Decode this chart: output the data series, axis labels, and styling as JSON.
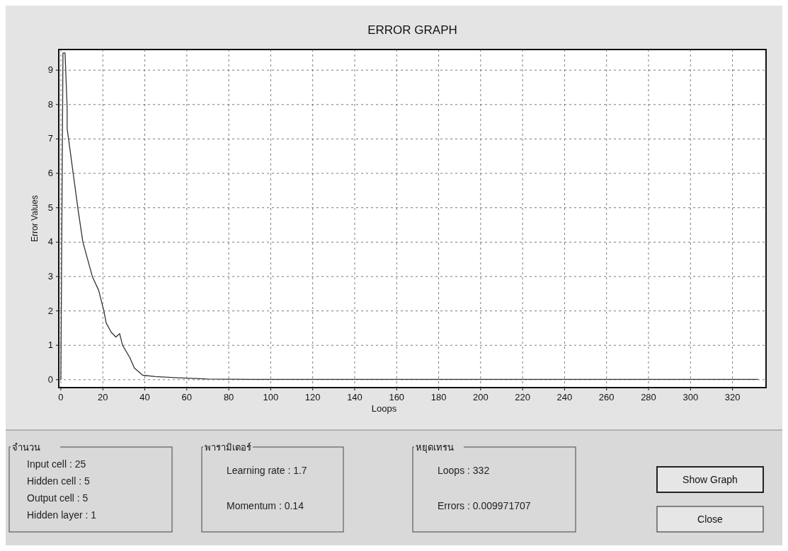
{
  "chart_data": {
    "type": "line",
    "title": "ERROR GRAPH",
    "xlabel": "Loops",
    "ylabel": "Error Values",
    "xlim": [
      -1,
      336
    ],
    "ylim": [
      -0.23,
      9.6
    ],
    "xticks": [
      0,
      20,
      40,
      60,
      80,
      100,
      120,
      140,
      160,
      180,
      200,
      220,
      240,
      260,
      280,
      300,
      320
    ],
    "yticks": [
      0,
      1,
      2,
      3,
      4,
      5,
      6,
      7,
      8,
      9
    ],
    "grid": true,
    "series": [
      {
        "color": "#333333",
        "line_style": "solid",
        "x": [
          0,
          1,
          2,
          3,
          3,
          8.3,
          10.5,
          15,
          18,
          20.5,
          21.6,
          24,
          26.2,
          28,
          29.4,
          32.8,
          35,
          39,
          45,
          58,
          70,
          92,
          150,
          200,
          332
        ],
        "values": [
          0,
          9.5,
          9.5,
          7.9,
          7.3,
          4.9,
          4,
          3,
          2.6,
          2,
          1.65,
          1.38,
          1.24,
          1.34,
          1,
          0.65,
          0.34,
          0.13,
          0.09,
          0.05,
          0.02,
          0.01,
          0.01,
          0.01,
          0.01
        ]
      }
    ],
    "annotations": [
      "จำนวน",
      "Input cell : 25",
      "Hidden cell : 5",
      "Output cell : 5",
      "Hidden layer : 1",
      "พารามิเตอร์",
      "Learning rate : 1.7",
      "Momentum : 0.14",
      "หยุดเทรน",
      "Loops : 332",
      "Errors : 0.009971707",
      "Show Graph",
      "Close"
    ]
  }
}
